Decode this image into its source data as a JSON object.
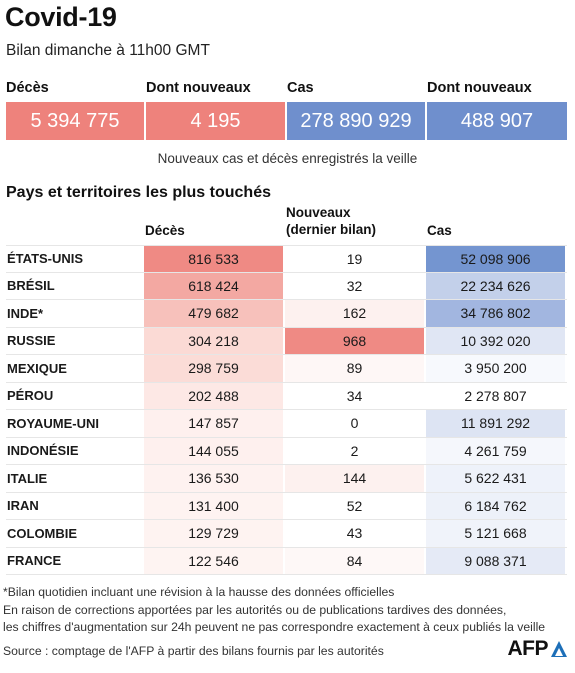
{
  "header": {
    "title": "Covid-19",
    "subtitle": "Bilan dimanche à 11h00 GMT"
  },
  "summary": {
    "items": [
      {
        "label": "Décès",
        "value": "5 394 775",
        "color": "#ee827c"
      },
      {
        "label": "Dont nouveaux",
        "value": "4 195",
        "color": "#ee827c"
      },
      {
        "label": "Cas",
        "value": "278 890 929",
        "color": "#6f8fcd"
      },
      {
        "label": "Dont nouveaux",
        "value": "488 907",
        "color": "#6f8fcd"
      }
    ],
    "note": "Nouveaux cas et décès enregistrés la veille"
  },
  "table": {
    "section_title": "Pays et territoires les plus touchés",
    "col_deaths": "Décès",
    "col_new_line1": "Nouveaux",
    "col_new_line2": "(dernier bilan)",
    "col_cases": "Cas",
    "rows": [
      {
        "country": "ÉTATS-UNIS",
        "deaths": "816 533",
        "new": "19",
        "cases": "52 098 906",
        "deaths_bg": "#ef8a84",
        "new_bg": "#ffffff",
        "cases_bg": "#7495d0"
      },
      {
        "country": "BRÉSIL",
        "deaths": "618 424",
        "new": "32",
        "cases": "22 234 626",
        "deaths_bg": "#f3a8a2",
        "new_bg": "#ffffff",
        "cases_bg": "#c3d0ea"
      },
      {
        "country": "INDE*",
        "deaths": "479 682",
        "new": "162",
        "cases": "34 786 802",
        "deaths_bg": "#f7c1bb",
        "new_bg": "#fdf1ef",
        "cases_bg": "#a2b6e0"
      },
      {
        "country": "RUSSIE",
        "deaths": "304 218",
        "new": "968",
        "cases": "10 392 020",
        "deaths_bg": "#fbdad5",
        "new_bg": "#ef8a84",
        "cases_bg": "#e0e6f4"
      },
      {
        "country": "MEXIQUE",
        "deaths": "298 759",
        "new": "89",
        "cases": "3 950 200",
        "deaths_bg": "#fbdcd7",
        "new_bg": "#fef7f6",
        "cases_bg": "#f7f9fd"
      },
      {
        "country": "PÉROU",
        "deaths": "202 488",
        "new": "34",
        "cases": "2 278 807",
        "deaths_bg": "#fde8e5",
        "new_bg": "#ffffff",
        "cases_bg": "#ffffff"
      },
      {
        "country": "ROYAUME-UNI",
        "deaths": "147 857",
        "new": "0",
        "cases": "11 891 292",
        "deaths_bg": "#fef0ee",
        "new_bg": "#ffffff",
        "cases_bg": "#dde4f3"
      },
      {
        "country": "INDONÉSIE",
        "deaths": "144 055",
        "new": "2",
        "cases": "4 261 759",
        "deaths_bg": "#fef0ee",
        "new_bg": "#ffffff",
        "cases_bg": "#f5f7fc"
      },
      {
        "country": "ITALIE",
        "deaths": "136 530",
        "new": "144",
        "cases": "5 622 431",
        "deaths_bg": "#fef2f0",
        "new_bg": "#fdf1ef",
        "cases_bg": "#eef2fa"
      },
      {
        "country": "IRAN",
        "deaths": "131 400",
        "new": "52",
        "cases": "6 184 762",
        "deaths_bg": "#fef3f1",
        "new_bg": "#ffffff",
        "cases_bg": "#edf1f9"
      },
      {
        "country": "COLOMBIE",
        "deaths": "129 729",
        "new": "43",
        "cases": "5 121 668",
        "deaths_bg": "#fef3f1",
        "new_bg": "#ffffff",
        "cases_bg": "#f0f3fa"
      },
      {
        "country": "FRANCE",
        "deaths": "122 546",
        "new": "84",
        "cases": "9 088 371",
        "deaths_bg": "#fef4f2",
        "new_bg": "#fef8f7",
        "cases_bg": "#e5eaf6"
      }
    ]
  },
  "footnotes": {
    "line1": "*Bilan quotidien incluant une révision à la hausse des données officielles",
    "line2": "En raison de corrections apportées par les autorités ou de publications tardives des données,",
    "line3": "les chiffres d'augmentation sur 24h peuvent ne pas correspondre exactement à ceux publiés la veille",
    "source": "Source : comptage de l'AFP à partir des bilans fournis par les autorités"
  },
  "logo": {
    "text": "AFP",
    "mark_color": "#1d6fb8"
  }
}
